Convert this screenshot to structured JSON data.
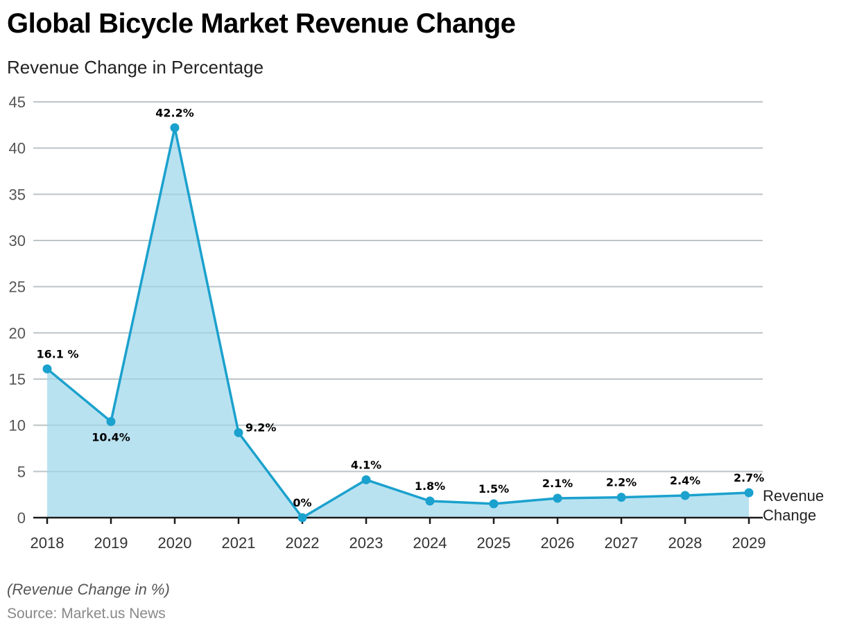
{
  "header": {
    "title": "Global Bicycle Market Revenue Change",
    "subtitle": "Revenue Change in Percentage"
  },
  "footer": {
    "note": "(Revenue Change in %)",
    "source": "Source: Market.us News"
  },
  "chart_data": {
    "type": "area",
    "title": "Global Bicycle Market Revenue Change",
    "subtitle": "Revenue Change in Percentage",
    "xlabel": "",
    "ylabel": "",
    "categories": [
      "2018",
      "2019",
      "2020",
      "2021",
      "2022",
      "2023",
      "2024",
      "2025",
      "2026",
      "2027",
      "2028",
      "2029"
    ],
    "series": [
      {
        "name": "Revenue Change",
        "legend_lines": [
          "Revenue",
          "Change"
        ],
        "values": [
          16.1,
          10.4,
          42.2,
          9.2,
          0,
          4.1,
          1.8,
          1.5,
          2.1,
          2.2,
          2.4,
          2.7
        ],
        "labels": [
          "16.1 %",
          "10.4%",
          "42.2%",
          "9.2%",
          "0%",
          "4.1%",
          "1.8%",
          "1.5%",
          "2.1%",
          "2.2%",
          "2.4%",
          "2.7%"
        ],
        "label_positions": [
          "above",
          "below",
          "above",
          "right",
          "above",
          "above",
          "above",
          "above",
          "above",
          "above",
          "above",
          "above"
        ],
        "line_color": "#1ba1cd",
        "fill_color": "#b9e2f1"
      }
    ],
    "yticks": [
      0,
      5,
      10,
      15,
      20,
      25,
      30,
      35,
      40,
      45
    ],
    "ylim": [
      0,
      45
    ],
    "grid": true,
    "legend": "right-end-of-line"
  }
}
